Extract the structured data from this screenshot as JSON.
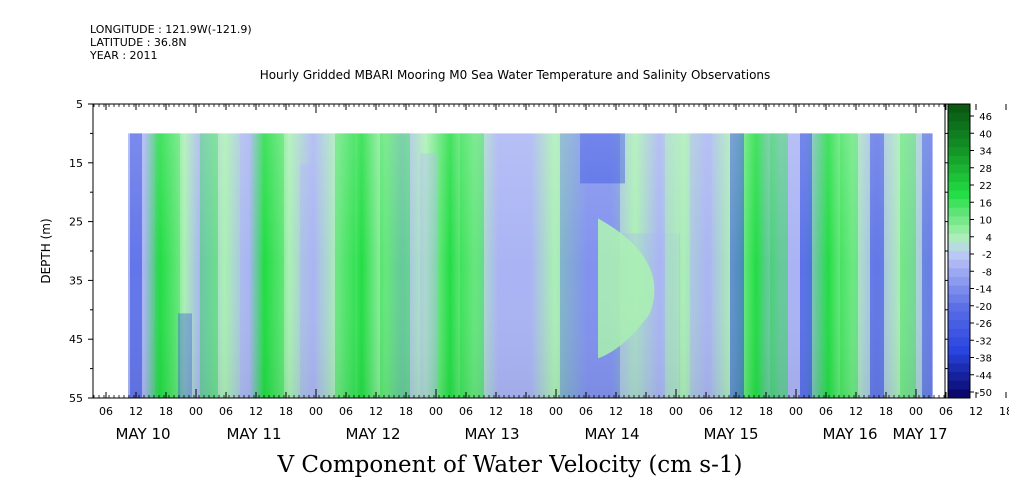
{
  "header": {
    "longitude": "LONGITUDE : 121.9W(-121.9)",
    "latitude": "LATITUDE : 36.8N",
    "year": "YEAR : 2011"
  },
  "chart_data": {
    "type": "heatmap",
    "title": "Hourly Gridded MBARI Mooring M0 Sea Water Temperature and Salinity Observations",
    "ylabel": "DEPTH (m)",
    "variable_label": "V Component of Water Velocity (cm s-1)",
    "y_ticks": [
      "5",
      "15",
      "25",
      "35",
      "45",
      "55"
    ],
    "ylim": [
      55,
      5
    ],
    "data_depth_range": [
      10,
      55
    ],
    "x_hour_ticks": [
      "06",
      "12",
      "18",
      "00",
      "06",
      "12",
      "18",
      "00",
      "06",
      "12",
      "18",
      "00",
      "06",
      "12",
      "18",
      "00",
      "06",
      "12",
      "18",
      "00",
      "06",
      "12",
      "18",
      "00",
      "06",
      "12",
      "18",
      "00",
      "06",
      "12",
      "18",
      "00"
    ],
    "x_day_labels": [
      "MAY 10",
      "MAY 11",
      "MAY 12",
      "MAY 13",
      "MAY 14",
      "MAY 15",
      "MAY 16",
      "MAY 17"
    ],
    "colorbar": {
      "labels": [
        "46",
        "40",
        "34",
        "28",
        "22",
        "16",
        "10",
        "4",
        "-2",
        "-8",
        "-14",
        "-20",
        "-26",
        "-32",
        "-38",
        "-44",
        "-50"
      ],
      "range": [
        -50,
        50
      ]
    },
    "colors": {
      "dark_green": "#0a5a14",
      "green": "#22dd44",
      "light_green": "#aaf0b4",
      "light_blue": "#aab4f4",
      "blue": "#2844e0",
      "navy": "#0a0a6e"
    }
  }
}
